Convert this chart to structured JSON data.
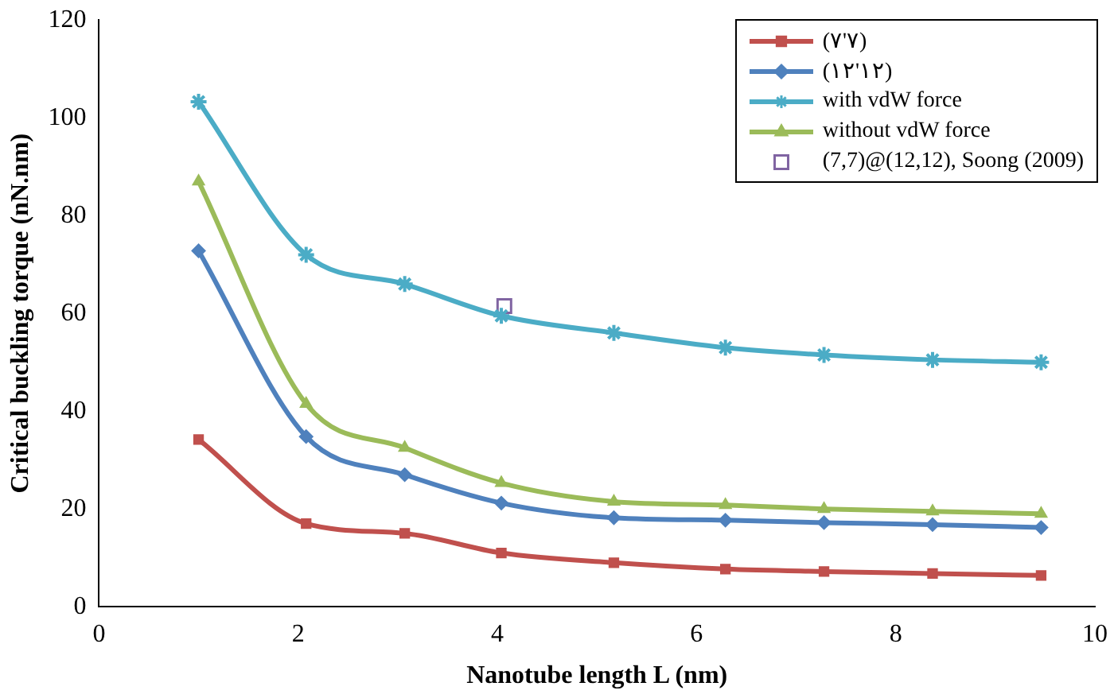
{
  "chart_data": {
    "type": "line",
    "xlabel": "Nanotube length L (nm)",
    "ylabel": "Critical buckling torque (nN.nm)",
    "xlim": [
      0,
      10
    ],
    "xticks": [
      0,
      2,
      4,
      6,
      8,
      10
    ],
    "ylim": [
      0,
      120
    ],
    "yticks": [
      0,
      20,
      40,
      60,
      80,
      100,
      120
    ],
    "grid": false,
    "legend": "top right",
    "series": [
      {
        "name": "(۷'۷)",
        "color": "#c0504d",
        "marker": "square",
        "x": [
          1.0,
          2.08,
          3.07,
          4.04,
          5.17,
          6.29,
          7.28,
          8.37,
          9.46
        ],
        "values": [
          34.2,
          17,
          15,
          11,
          9,
          7.7,
          7.2,
          6.8,
          6.4
        ]
      },
      {
        "name": "(۱۲'۱۲)",
        "color": "#4f81bd",
        "marker": "diamond",
        "x": [
          1.0,
          2.08,
          3.07,
          4.04,
          5.17,
          6.29,
          7.28,
          8.37,
          9.46
        ],
        "values": [
          72.8,
          34.8,
          27,
          21.2,
          18.2,
          17.7,
          17.2,
          16.8,
          16.2
        ]
      },
      {
        "name": "with vdW force",
        "color": "#4bacc6",
        "marker": "cross",
        "x": [
          1.0,
          2.08,
          3.07,
          4.04,
          5.17,
          6.29,
          7.28,
          8.37,
          9.46
        ],
        "values": [
          103.3,
          72,
          66,
          59.5,
          56,
          53,
          51.5,
          50.5,
          50
        ]
      },
      {
        "name": "without vdW force",
        "color": "#9bbb59",
        "marker": "triangle",
        "x": [
          1.0,
          2.08,
          3.07,
          4.04,
          5.17,
          6.29,
          7.28,
          8.37,
          9.46
        ],
        "values": [
          87,
          41.5,
          32.5,
          25.3,
          21.5,
          20.8,
          20,
          19.5,
          19
        ]
      },
      {
        "name": "(7,7)@(12,12), Soong (2009)",
        "type": "scatter",
        "color": "#8064a2",
        "marker": "square",
        "x": [
          4.07
        ],
        "values": [
          61.5
        ]
      }
    ]
  }
}
